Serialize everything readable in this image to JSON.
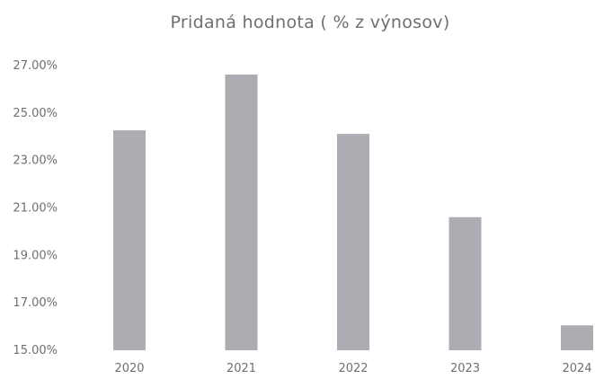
{
  "chart_data": {
    "type": "bar",
    "title": "Pridaná hodnota ( % z výnosov)",
    "xlabel": "",
    "ylabel": "",
    "categories": [
      "2020",
      "2021",
      "2022",
      "2023",
      "2024"
    ],
    "values": [
      24.27,
      26.62,
      24.12,
      20.61,
      16.05
    ],
    "ylim": [
      15.0,
      27.0
    ],
    "yticks": [
      "27.00%",
      "25.00%",
      "23.00%",
      "21.00%",
      "19.00%",
      "17.00%",
      "15.00%"
    ],
    "grid": false,
    "legend": "none",
    "bar_color": "#acadb3"
  }
}
